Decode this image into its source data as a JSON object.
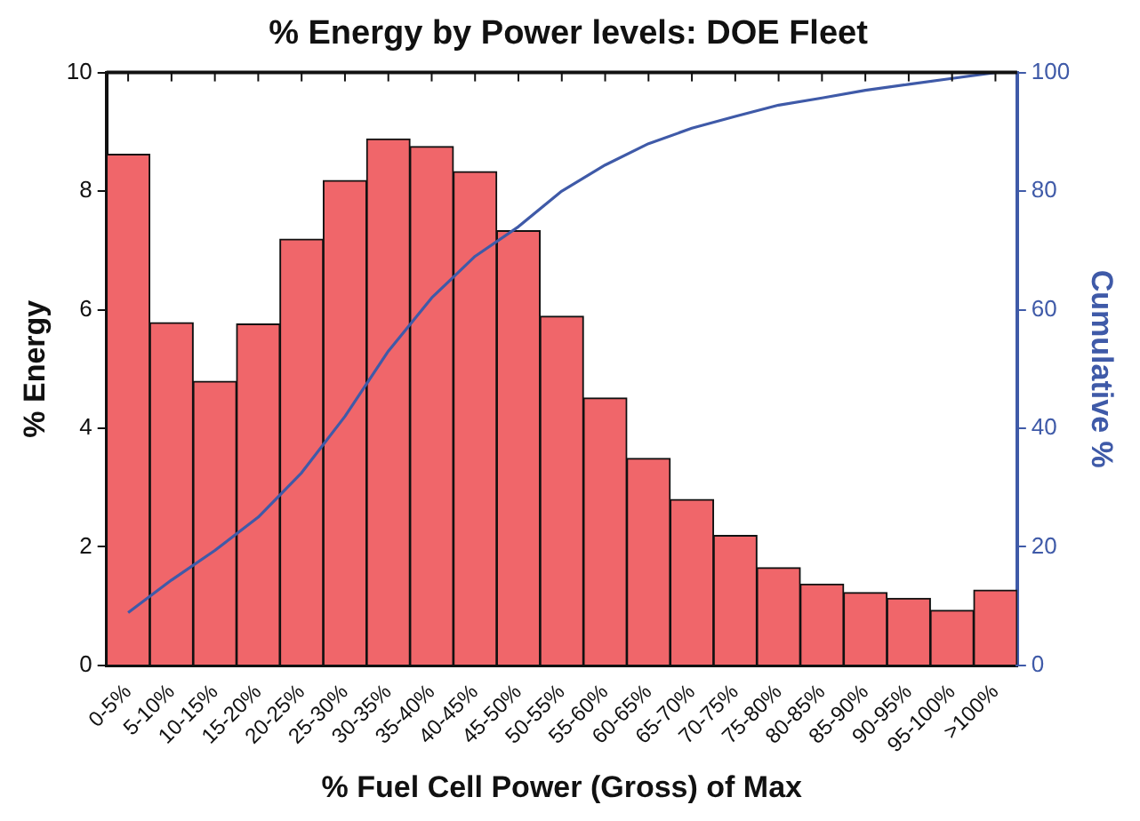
{
  "chart_data": {
    "type": "bar",
    "title": "% Energy by Power levels: DOE Fleet",
    "xlabel": "% Fuel Cell Power (Gross) of Max",
    "ylabel": "% Energy",
    "y2label": "Cumulative %",
    "categories": [
      "0-5%",
      "5-10%",
      "10-15%",
      "15-20%",
      "20-25%",
      "25-30%",
      "30-35%",
      "35-40%",
      "40-45%",
      "45-50%",
      "50-55%",
      "55-60%",
      "60-65%",
      "65-70%",
      "70-75%",
      "75-80%",
      "80-85%",
      "85-90%",
      "90-95%",
      "95-100%",
      ">100%"
    ],
    "series": [
      {
        "color": "#f0666a",
        "values": [
          8.62,
          5.78,
          4.79,
          5.76,
          7.19,
          8.18,
          8.88,
          8.75,
          8.33,
          7.33,
          5.89,
          4.51,
          3.49,
          2.8,
          2.19,
          1.65,
          1.37,
          1.23,
          1.13,
          0.93,
          1.27
        ]
      },
      {
        "type": "line",
        "axis": "y2",
        "color": "#3f5aa8",
        "values": [
          8.9,
          14.4,
          19.4,
          25,
          32.5,
          42,
          53,
          62,
          69,
          74,
          80,
          84.4,
          88,
          90.6,
          92.6,
          94.5,
          95.7,
          97,
          98,
          99,
          100
        ]
      }
    ],
    "ylim": [
      0,
      10
    ],
    "yticks": [
      0,
      2,
      4,
      6,
      8,
      10
    ],
    "y2lim": [
      0,
      100
    ],
    "y2ticks": [
      0,
      20,
      40,
      60,
      80,
      100
    ],
    "grid": false,
    "legend": false,
    "marker": "none"
  }
}
